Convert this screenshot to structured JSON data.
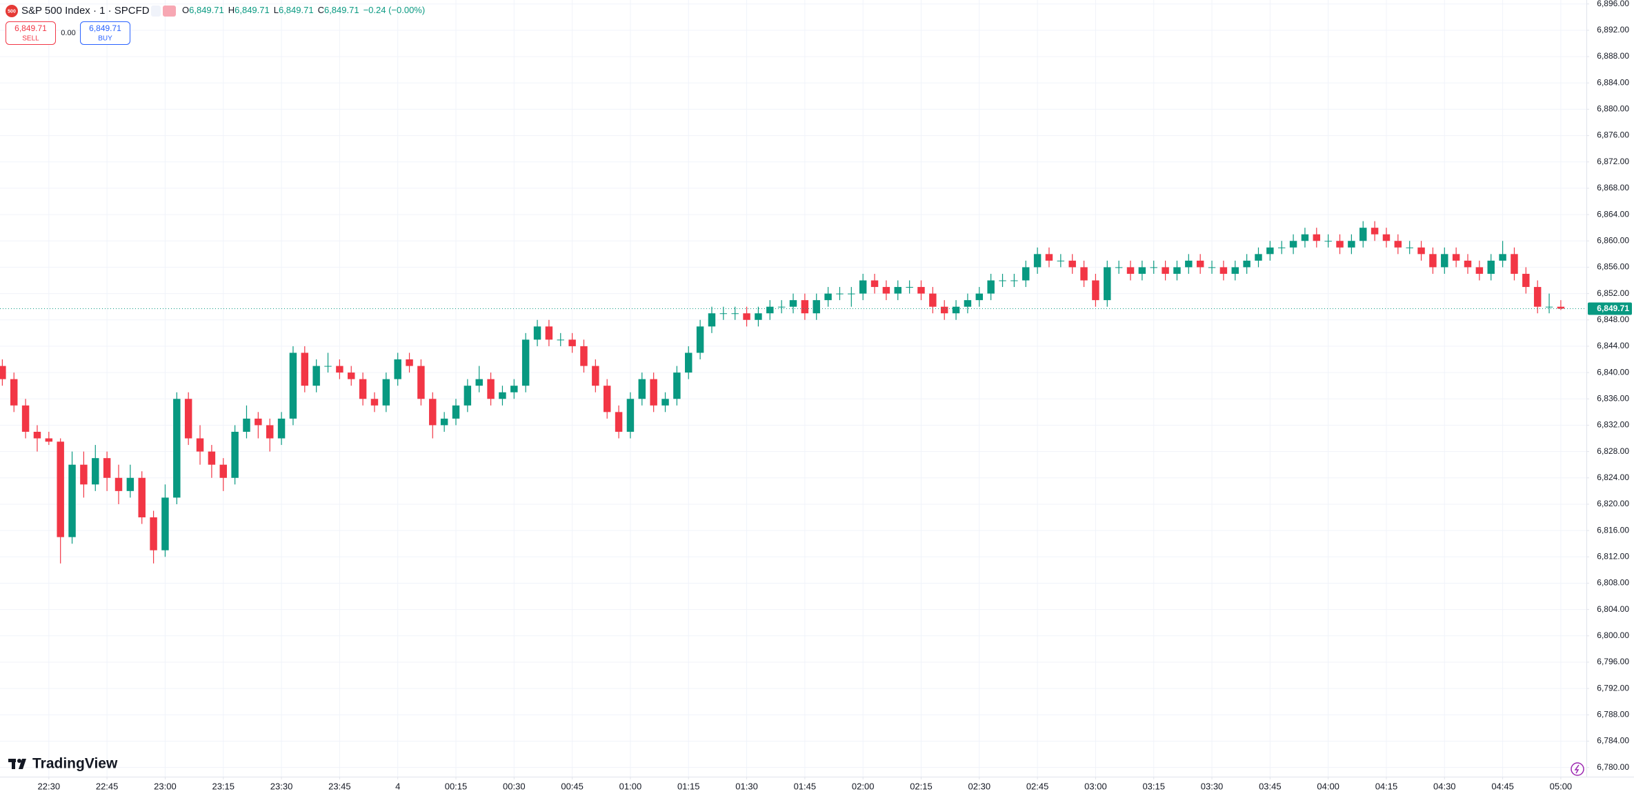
{
  "chart_data": {
    "type": "candlestick",
    "header": {
      "logo_text": "500",
      "symbol": "S&P 500 Index · 1 · SPCFD",
      "open_label": "O",
      "open": "6,849.71",
      "high_label": "H",
      "high": "6,849.71",
      "low_label": "L",
      "low": "6,849.71",
      "close_label": "C",
      "close": "6,849.71",
      "change": "−0.24 (−0.00%)",
      "sell_price": "6,849.71",
      "sell_label": "SELL",
      "spread": "0.00",
      "buy_price": "6,849.71",
      "buy_label": "BUY"
    },
    "last_price_label": "6,849.71",
    "brand": "TradingView",
    "up_color": "#089981",
    "down_color": "#f23645",
    "grid": true,
    "ohlc": [
      [
        6841,
        6842,
        6838,
        6839
      ],
      [
        6839,
        6840,
        6834,
        6835
      ],
      [
        6835,
        6836,
        6830,
        6831
      ],
      [
        6831,
        6832,
        6828,
        6830
      ],
      [
        6830,
        6831,
        6829,
        6829.5
      ],
      [
        6829.5,
        6830,
        6811,
        6815
      ],
      [
        6815,
        6828,
        6814,
        6826
      ],
      [
        6826,
        6828,
        6821,
        6823
      ],
      [
        6823,
        6829,
        6822,
        6827
      ],
      [
        6827,
        6828,
        6822,
        6824
      ],
      [
        6824,
        6826,
        6820,
        6822
      ],
      [
        6822,
        6826,
        6821,
        6824
      ],
      [
        6824,
        6825,
        6817,
        6818
      ],
      [
        6818,
        6819,
        6811,
        6813
      ],
      [
        6813,
        6823,
        6812,
        6821
      ],
      [
        6821,
        6837,
        6820,
        6836
      ],
      [
        6836,
        6837,
        6829,
        6830
      ],
      [
        6830,
        6832,
        6826,
        6828
      ],
      [
        6828,
        6829,
        6824,
        6826
      ],
      [
        6826,
        6827,
        6822,
        6824
      ],
      [
        6824,
        6832,
        6823,
        6831
      ],
      [
        6831,
        6835,
        6830,
        6833
      ],
      [
        6833,
        6834,
        6830,
        6832
      ],
      [
        6832,
        6833,
        6828,
        6830
      ],
      [
        6830,
        6834,
        6829,
        6833
      ],
      [
        6833,
        6844,
        6832,
        6843
      ],
      [
        6843,
        6844,
        6837,
        6838
      ],
      [
        6838,
        6842,
        6837,
        6841
      ],
      [
        6841,
        6843,
        6840,
        6841
      ],
      [
        6841,
        6842,
        6839,
        6840
      ],
      [
        6840,
        6841,
        6838,
        6839
      ],
      [
        6839,
        6840,
        6835,
        6836
      ],
      [
        6836,
        6837,
        6834,
        6835
      ],
      [
        6835,
        6840,
        6834,
        6839
      ],
      [
        6839,
        6843,
        6838,
        6842
      ],
      [
        6842,
        6843,
        6840,
        6841
      ],
      [
        6841,
        6842,
        6835,
        6836
      ],
      [
        6836,
        6837,
        6830,
        6832
      ],
      [
        6832,
        6834,
        6831,
        6833
      ],
      [
        6833,
        6836,
        6832,
        6835
      ],
      [
        6835,
        6839,
        6834,
        6838
      ],
      [
        6838,
        6841,
        6837,
        6839
      ],
      [
        6839,
        6840,
        6835,
        6836
      ],
      [
        6836,
        6838,
        6835,
        6837
      ],
      [
        6837,
        6839,
        6836,
        6838
      ],
      [
        6838,
        6846,
        6837,
        6845
      ],
      [
        6845,
        6848,
        6844,
        6847
      ],
      [
        6847,
        6848,
        6844,
        6845
      ],
      [
        6845,
        6846,
        6844,
        6845
      ],
      [
        6845,
        6846,
        6843,
        6844
      ],
      [
        6844,
        6845,
        6840,
        6841
      ],
      [
        6841,
        6842,
        6837,
        6838
      ],
      [
        6838,
        6839,
        6833,
        6834
      ],
      [
        6834,
        6835,
        6830,
        6831
      ],
      [
        6831,
        6837,
        6830,
        6836
      ],
      [
        6836,
        6840,
        6835,
        6839
      ],
      [
        6839,
        6840,
        6834,
        6835
      ],
      [
        6835,
        6837,
        6834,
        6836
      ],
      [
        6836,
        6841,
        6835,
        6840
      ],
      [
        6840,
        6844,
        6839,
        6843
      ],
      [
        6843,
        6848,
        6842,
        6847
      ],
      [
        6847,
        6850,
        6846,
        6849
      ],
      [
        6849,
        6850,
        6848,
        6849
      ],
      [
        6849,
        6850,
        6848,
        6849
      ],
      [
        6849,
        6850,
        6847,
        6848
      ],
      [
        6848,
        6850,
        6847,
        6849
      ],
      [
        6849,
        6851,
        6848,
        6850
      ],
      [
        6850,
        6851,
        6849,
        6850
      ],
      [
        6850,
        6852,
        6849,
        6851
      ],
      [
        6851,
        6852,
        6848,
        6849
      ],
      [
        6849,
        6852,
        6848,
        6851
      ],
      [
        6851,
        6853,
        6850,
        6852
      ],
      [
        6852,
        6853,
        6851,
        6852
      ],
      [
        6852,
        6853,
        6850,
        6852
      ],
      [
        6852,
        6855,
        6851,
        6854
      ],
      [
        6854,
        6855,
        6852,
        6853
      ],
      [
        6853,
        6854,
        6851,
        6852
      ],
      [
        6852,
        6854,
        6851,
        6853
      ],
      [
        6853,
        6854,
        6852,
        6853
      ],
      [
        6853,
        6854,
        6851,
        6852
      ],
      [
        6852,
        6853,
        6849,
        6850
      ],
      [
        6850,
        6851,
        6848,
        6849
      ],
      [
        6849,
        6851,
        6848,
        6850
      ],
      [
        6850,
        6852,
        6849,
        6851
      ],
      [
        6851,
        6853,
        6850,
        6852
      ],
      [
        6852,
        6855,
        6851,
        6854
      ],
      [
        6854,
        6855,
        6853,
        6854
      ],
      [
        6854,
        6855,
        6853,
        6854
      ],
      [
        6854,
        6857,
        6853,
        6856
      ],
      [
        6856,
        6859,
        6855,
        6858
      ],
      [
        6858,
        6859,
        6856,
        6857
      ],
      [
        6857,
        6858,
        6856,
        6857
      ],
      [
        6857,
        6858,
        6855,
        6856
      ],
      [
        6856,
        6857,
        6853,
        6854
      ],
      [
        6854,
        6855,
        6850,
        6851
      ],
      [
        6851,
        6857,
        6850,
        6856
      ],
      [
        6856,
        6857,
        6855,
        6856
      ],
      [
        6856,
        6857,
        6854,
        6855
      ],
      [
        6855,
        6857,
        6854,
        6856
      ],
      [
        6856,
        6857,
        6855,
        6856
      ],
      [
        6856,
        6857,
        6854,
        6855
      ],
      [
        6855,
        6857,
        6854,
        6856
      ],
      [
        6856,
        6858,
        6855,
        6857
      ],
      [
        6857,
        6858,
        6855,
        6856
      ],
      [
        6856,
        6857,
        6855,
        6856
      ],
      [
        6856,
        6857,
        6854,
        6855
      ],
      [
        6855,
        6857,
        6854,
        6856
      ],
      [
        6856,
        6858,
        6855,
        6857
      ],
      [
        6857,
        6859,
        6856,
        6858
      ],
      [
        6858,
        6860,
        6857,
        6859
      ],
      [
        6859,
        6860,
        6858,
        6859
      ],
      [
        6859,
        6861,
        6858,
        6860
      ],
      [
        6860,
        6862,
        6859,
        6861
      ],
      [
        6861,
        6862,
        6859,
        6860
      ],
      [
        6860,
        6861,
        6859,
        6860
      ],
      [
        6860,
        6861,
        6858,
        6859
      ],
      [
        6859,
        6861,
        6858,
        6860
      ],
      [
        6860,
        6863,
        6859,
        6862
      ],
      [
        6862,
        6863,
        6860,
        6861
      ],
      [
        6861,
        6862,
        6859,
        6860
      ],
      [
        6860,
        6861,
        6858,
        6859
      ],
      [
        6859,
        6860,
        6858,
        6859
      ],
      [
        6859,
        6860,
        6857,
        6858
      ],
      [
        6858,
        6859,
        6855,
        6856
      ],
      [
        6856,
        6859,
        6855,
        6858
      ],
      [
        6858,
        6859,
        6856,
        6857
      ],
      [
        6857,
        6858,
        6855,
        6856
      ],
      [
        6856,
        6857,
        6854,
        6855
      ],
      [
        6855,
        6858,
        6854,
        6857
      ],
      [
        6857,
        6860,
        6856,
        6858
      ],
      [
        6858,
        6859,
        6854,
        6855
      ],
      [
        6855,
        6856,
        6852,
        6853
      ],
      [
        6853,
        6854,
        6849,
        6850
      ],
      [
        6850,
        6852,
        6849,
        6850
      ],
      [
        6850,
        6851,
        6849.5,
        6849.71
      ]
    ],
    "xlim": [
      -0.2,
      136.2
    ],
    "xticks": [
      {
        "value": 4,
        "label": "22:30"
      },
      {
        "value": 9,
        "label": "22:45"
      },
      {
        "value": 14,
        "label": "23:00"
      },
      {
        "value": 19,
        "label": "23:15"
      },
      {
        "value": 24,
        "label": "23:30"
      },
      {
        "value": 29,
        "label": "23:45"
      },
      {
        "value": 34,
        "label": "4"
      },
      {
        "value": 39,
        "label": "00:15"
      },
      {
        "value": 44,
        "label": "00:30"
      },
      {
        "value": 49,
        "label": "00:45"
      },
      {
        "value": 54,
        "label": "01:00"
      },
      {
        "value": 59,
        "label": "01:15"
      },
      {
        "value": 64,
        "label": "01:30"
      },
      {
        "value": 69,
        "label": "01:45"
      },
      {
        "value": 74,
        "label": "02:00"
      },
      {
        "value": 79,
        "label": "02:15"
      },
      {
        "value": 84,
        "label": "02:30"
      },
      {
        "value": 89,
        "label": "02:45"
      },
      {
        "value": 94,
        "label": "03:00"
      },
      {
        "value": 99,
        "label": "03:15"
      },
      {
        "value": 104,
        "label": "03:30"
      },
      {
        "value": 109,
        "label": "03:45"
      },
      {
        "value": 114,
        "label": "04:00"
      },
      {
        "value": 119,
        "label": "04:15"
      },
      {
        "value": 124,
        "label": "04:30"
      },
      {
        "value": 129,
        "label": "04:45"
      },
      {
        "value": 134,
        "label": "05:00"
      }
    ],
    "ylim": [
      6778.6,
      6896.6
    ],
    "yticks": [
      {
        "value": 6780,
        "label": "6,780.00"
      },
      {
        "value": 6784,
        "label": "6,784.00"
      },
      {
        "value": 6788,
        "label": "6,788.00"
      },
      {
        "value": 6792,
        "label": "6,792.00"
      },
      {
        "value": 6796,
        "label": "6,796.00"
      },
      {
        "value": 6800,
        "label": "6,800.00"
      },
      {
        "value": 6804,
        "label": "6,804.00"
      },
      {
        "value": 6808,
        "label": "6,808.00"
      },
      {
        "value": 6812,
        "label": "6,812.00"
      },
      {
        "value": 6816,
        "label": "6,816.00"
      },
      {
        "value": 6820,
        "label": "6,820.00"
      },
      {
        "value": 6824,
        "label": "6,824.00"
      },
      {
        "value": 6828,
        "label": "6,828.00"
      },
      {
        "value": 6832,
        "label": "6,832.00"
      },
      {
        "value": 6836,
        "label": "6,836.00"
      },
      {
        "value": 6840,
        "label": "6,840.00"
      },
      {
        "value": 6844,
        "label": "6,844.00"
      },
      {
        "value": 6848,
        "label": "6,848.00"
      },
      {
        "value": 6852,
        "label": "6,852.00"
      },
      {
        "value": 6856,
        "label": "6,856.00"
      },
      {
        "value": 6860,
        "label": "6,860.00"
      },
      {
        "value": 6864,
        "label": "6,864.00"
      },
      {
        "value": 6868,
        "label": "6,868.00"
      },
      {
        "value": 6872,
        "label": "6,872.00"
      },
      {
        "value": 6876,
        "label": "6,876.00"
      },
      {
        "value": 6880,
        "label": "6,880.00"
      },
      {
        "value": 6884,
        "label": "6,884.00"
      },
      {
        "value": 6888,
        "label": "6,888.00"
      },
      {
        "value": 6892,
        "label": "6,892.00"
      },
      {
        "value": 6896,
        "label": "6,896.00"
      }
    ]
  }
}
